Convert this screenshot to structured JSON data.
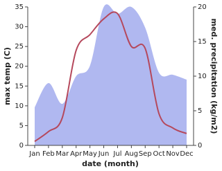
{
  "chart_data": {
    "type": "line",
    "categories": [
      "Jan",
      "Feb",
      "Mar",
      "Apr",
      "May",
      "Jun",
      "Jul",
      "Aug",
      "Sep",
      "Oct",
      "Nov",
      "Dec"
    ],
    "x_label": "date (month)",
    "y_label": "max temp (C)",
    "y2_label": "med. precipitation (kg/m2)",
    "ylim": [
      0,
      35
    ],
    "yticks": [
      0,
      5,
      10,
      15,
      20,
      25,
      30,
      35
    ],
    "y2lim": [
      0,
      20
    ],
    "y2ticks": [
      0,
      5,
      10,
      15,
      20
    ],
    "series": [
      {
        "name": "med. precipitation",
        "kind": "area",
        "axis": "y2",
        "color": "#b0b8f0",
        "values": [
          5.5,
          9,
          6,
          10,
          11.5,
          20,
          19,
          20,
          17,
          10.5,
          10.2,
          9.5
        ]
      },
      {
        "name": "max temp",
        "kind": "line",
        "color": "#b5485c",
        "values": [
          1,
          3.5,
          7,
          24,
          28,
          32,
          33.3,
          25,
          24.5,
          8,
          4.4,
          3
        ]
      }
    ]
  }
}
